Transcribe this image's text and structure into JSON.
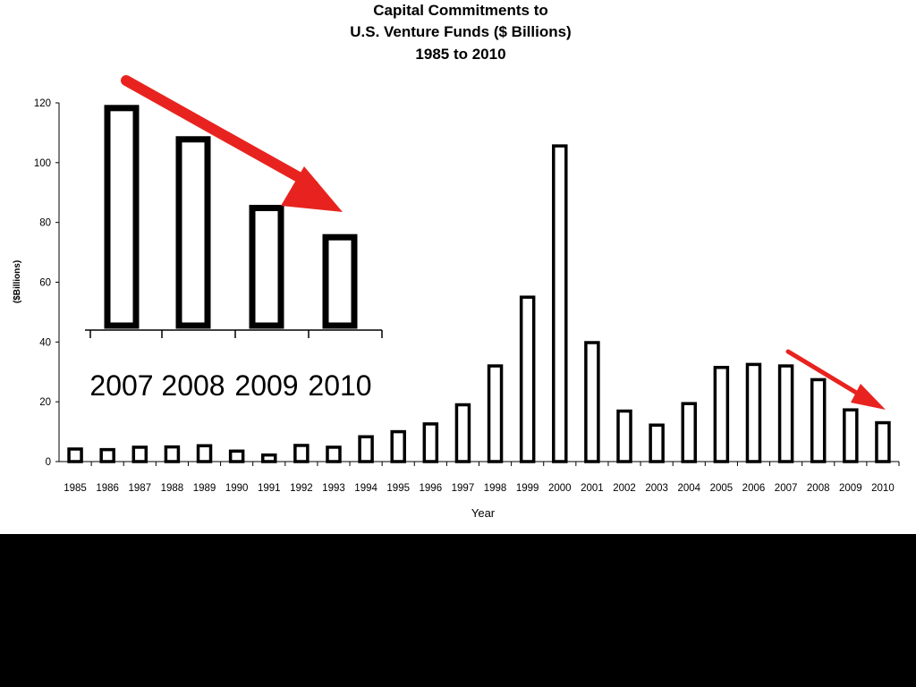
{
  "chart_data": {
    "type": "bar",
    "title_lines": [
      "Capital Commitments to",
      "U.S. Venture Funds ($ Billions)",
      "1985 to 2010"
    ],
    "xlabel": "Year",
    "ylabel": "($Billions)",
    "ylim": [
      0,
      120
    ],
    "yticks": [
      0,
      20,
      40,
      60,
      80,
      100,
      120
    ],
    "categories": [
      "1985",
      "1986",
      "1987",
      "1988",
      "1989",
      "1990",
      "1991",
      "1992",
      "1993",
      "1994",
      "1995",
      "1996",
      "1997",
      "1998",
      "1999",
      "2000",
      "2001",
      "2002",
      "2003",
      "2004",
      "2005",
      "2006",
      "2007",
      "2008",
      "2009",
      "2010"
    ],
    "values": [
      4.2,
      4.0,
      4.8,
      4.9,
      5.3,
      3.5,
      2.2,
      5.4,
      4.8,
      8.3,
      10.0,
      12.6,
      19.0,
      32.0,
      55.0,
      105.6,
      39.8,
      16.9,
      12.2,
      19.4,
      31.5,
      32.5,
      32.0,
      27.4,
      17.3,
      13.0
    ],
    "grid": false,
    "inset": {
      "categories": [
        "2007",
        "2008",
        "2009",
        "2010"
      ],
      "values": [
        32.0,
        27.4,
        17.3,
        13.0
      ]
    },
    "arrow_color": "#e8231f"
  }
}
